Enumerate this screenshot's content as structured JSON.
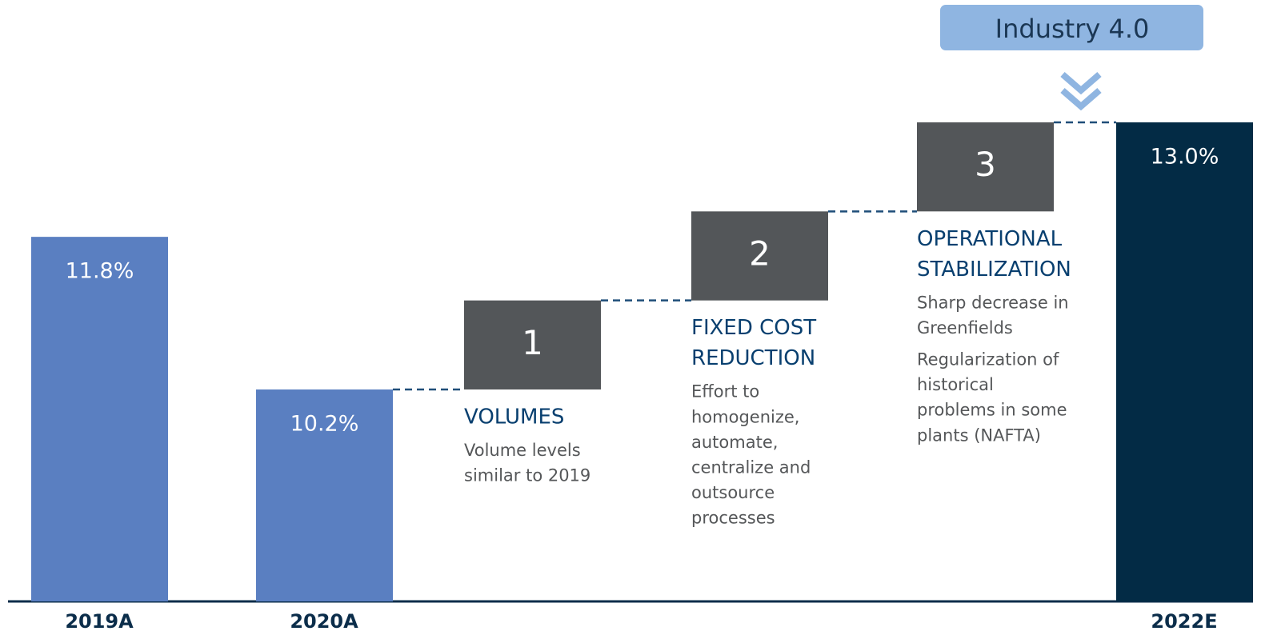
{
  "chart_data": {
    "type": "waterfall",
    "categories": [
      "2019A",
      "2020A",
      "2022E"
    ],
    "values": [
      11.8,
      10.2,
      13.0
    ],
    "value_labels": [
      "11.8%",
      "10.2%",
      "13.0%"
    ],
    "colors": [
      "#5a7fc1",
      "#5a7fc1",
      "#032b45"
    ],
    "step_color": "#535659",
    "steps": [
      {
        "label": "1",
        "title": [
          "VOLUMES"
        ],
        "paragraphs": [
          [
            "Volume levels",
            "similar to 2019"
          ]
        ]
      },
      {
        "label": "2",
        "title": [
          "FIXED COST",
          "REDUCTION"
        ],
        "paragraphs": [
          [
            "Effort to",
            "homogenize,",
            "automate,",
            "centralize and",
            "outsource",
            "processes"
          ]
        ]
      },
      {
        "label": "3",
        "title": [
          "OPERATIONAL",
          "STABILIZATION"
        ],
        "paragraphs": [
          [
            "Sharp decrease in",
            "Greenfields"
          ],
          [
            "Regularization of",
            "historical",
            "problems in some",
            "plants (NAFTA)"
          ]
        ]
      }
    ],
    "annotation": "Industry 4.0"
  }
}
